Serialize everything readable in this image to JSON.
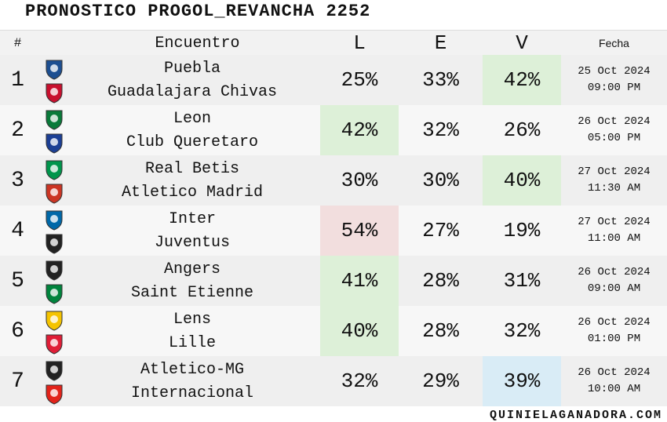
{
  "header": {
    "title": "PRONOSTICO PROGOL_REVANCHA 2252"
  },
  "table": {
    "columns": [
      "#",
      "Encuentro",
      "L",
      "E",
      "V",
      "Fecha"
    ],
    "rows": [
      {
        "num": "1",
        "home": "Puebla",
        "away": "Guadalajara Chivas",
        "L": "25%",
        "E": "33%",
        "V": "42%",
        "date": "25 Oct 2024",
        "time": "09:00 PM",
        "highlight": "V",
        "highlight_color": "#ddf0d8"
      },
      {
        "num": "2",
        "home": "Leon",
        "away": "Club Queretaro",
        "L": "42%",
        "E": "32%",
        "V": "26%",
        "date": "26 Oct 2024",
        "time": "05:00 PM",
        "highlight": "L",
        "highlight_color": "#ddf0d8"
      },
      {
        "num": "3",
        "home": "Real Betis",
        "away": "Atletico Madrid",
        "L": "30%",
        "E": "30%",
        "V": "40%",
        "date": "27 Oct 2024",
        "time": "11:30 AM",
        "highlight": "V",
        "highlight_color": "#ddf0d8"
      },
      {
        "num": "4",
        "home": "Inter",
        "away": "Juventus",
        "L": "54%",
        "E": "27%",
        "V": "19%",
        "date": "27 Oct 2024",
        "time": "11:00 AM",
        "highlight": "L",
        "highlight_color": "#f2dede"
      },
      {
        "num": "5",
        "home": "Angers",
        "away": "Saint Etienne",
        "L": "41%",
        "E": "28%",
        "V": "31%",
        "date": "26 Oct 2024",
        "time": "09:00 AM",
        "highlight": "L",
        "highlight_color": "#ddf0d8"
      },
      {
        "num": "6",
        "home": "Lens",
        "away": "Lille",
        "L": "40%",
        "E": "28%",
        "V": "32%",
        "date": "26 Oct 2024",
        "time": "01:00 PM",
        "highlight": "L",
        "highlight_color": "#ddf0d8"
      },
      {
        "num": "7",
        "home": "Atletico-MG",
        "away": "Internacional",
        "L": "32%",
        "E": "29%",
        "V": "39%",
        "date": "26 Oct 2024",
        "time": "10:00 AM",
        "highlight": "V",
        "highlight_color": "#d9ecf6"
      }
    ]
  },
  "footer": {
    "site": "QUINIELAGANADORA.COM"
  }
}
